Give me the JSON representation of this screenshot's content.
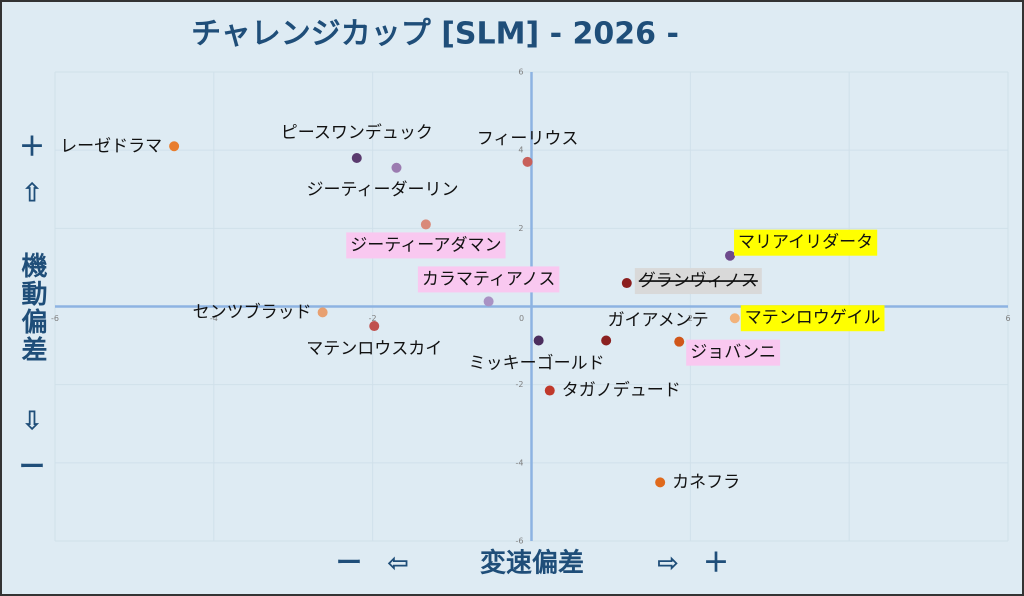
{
  "chart_data": {
    "type": "scatter",
    "title": "チャレンジカップ [SLM]  - 2026 -",
    "x_label": {
      "minus": "ー",
      "left": "⇦",
      "text": "変速偏差",
      "right": "⇨",
      "plus": "＋"
    },
    "y_label": {
      "plus": "＋",
      "up": "⇧",
      "text": "機動偏差",
      "down": "⇩",
      "minus": "ー"
    },
    "xlim": [
      -6,
      6
    ],
    "ylim": [
      -6,
      6
    ],
    "xticks": [
      -6,
      -4,
      -2,
      0,
      2,
      4,
      6
    ],
    "yticks": [
      -6,
      -4,
      -2,
      0,
      2,
      4,
      6
    ],
    "grid": true,
    "series": [
      {
        "name": "レーゼドラマ",
        "color": "#e87d2e",
        "x": [
          -4.5
        ],
        "values": [
          4.1
        ]
      },
      {
        "name": "ピースワンデュック",
        "color": "#5a3a6e",
        "x": [
          -2.2
        ],
        "values": [
          3.8
        ]
      },
      {
        "name": "ジーティーダーリン",
        "color": "#9b7bb0",
        "x": [
          -1.7
        ],
        "values": [
          3.55
        ]
      },
      {
        "name": "フィーリウス",
        "color": "#c8605a",
        "x": [
          -0.05
        ],
        "values": [
          3.7
        ]
      },
      {
        "name": "ジーティーアダマン",
        "color": "#d98a7a",
        "x": [
          -1.33
        ],
        "values": [
          2.1
        ],
        "highlight": "#f9c8f0"
      },
      {
        "name": "カラマティアノス",
        "color": "#a992c4",
        "x": [
          -0.54
        ],
        "values": [
          0.13
        ],
        "highlight": "#f9c8f0"
      },
      {
        "name": "マリアイリダータ",
        "color": "#6e4a8c",
        "x": [
          2.5
        ],
        "values": [
          1.3
        ],
        "highlight": "#ffff00"
      },
      {
        "name": "グランヴィノス",
        "color": "#8b1e1e",
        "x": [
          1.2
        ],
        "values": [
          0.6
        ],
        "highlight": "#d9d9d9",
        "strike": true
      },
      {
        "name": "センツブラッド",
        "color": "#e8a070",
        "x": [
          -2.63
        ],
        "values": [
          -0.15
        ]
      },
      {
        "name": "マテンロウスカイ",
        "color": "#c0504d",
        "x": [
          -1.98
        ],
        "values": [
          -0.5
        ]
      },
      {
        "name": "マテンロウゲイル",
        "color": "#f2b27a",
        "x": [
          2.56
        ],
        "values": [
          -0.3
        ],
        "highlight": "#ffff00"
      },
      {
        "name": "ガイアメンテ",
        "color": "#8b2020",
        "x": [
          0.94
        ],
        "values": [
          -0.87
        ]
      },
      {
        "name": "ミッキーゴールド",
        "color": "#4b2e5e",
        "x": [
          0.09
        ],
        "values": [
          -0.87
        ]
      },
      {
        "name": "ジョバンニ",
        "color": "#d0561a",
        "x": [
          1.86
        ],
        "values": [
          -0.9
        ],
        "highlight": "#f9c8f0"
      },
      {
        "name": "タガノデュード",
        "color": "#c0392b",
        "x": [
          0.23
        ],
        "values": [
          -2.15
        ]
      },
      {
        "name": "カネフラ",
        "color": "#e06a1c",
        "x": [
          1.62
        ],
        "values": [
          -4.5
        ]
      }
    ]
  }
}
